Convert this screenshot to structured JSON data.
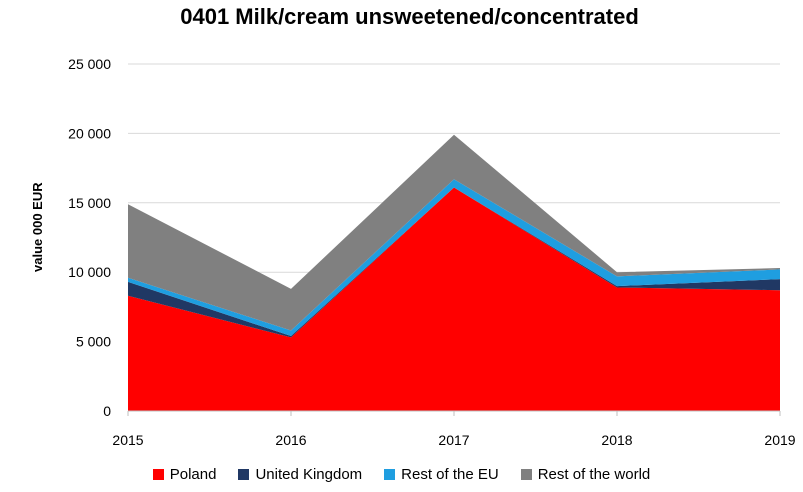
{
  "chart_data": {
    "type": "area",
    "stacked": true,
    "title": "0401 Milk/cream unsweetened/concentrated",
    "ylabel": "value 000 EUR",
    "xlabel": "",
    "x": [
      "2015",
      "2016",
      "2017",
      "2018",
      "2019"
    ],
    "ylim": [
      0,
      25000
    ],
    "yticks": [
      "0",
      "5 000",
      "10 000",
      "15 000",
      "20 000",
      "25 000"
    ],
    "ytick_values": [
      0,
      5000,
      10000,
      15000,
      20000,
      25000
    ],
    "grid": true,
    "legend_position": "bottom",
    "series": [
      {
        "name": "Poland",
        "color": "#ff0000",
        "values": [
          8300,
          5300,
          16100,
          8900,
          8700
        ]
      },
      {
        "name": "United Kingdom",
        "color": "#203864",
        "values": [
          1000,
          100,
          0,
          100,
          800
        ]
      },
      {
        "name": "Rest of the EU",
        "color": "#1f9ee0",
        "values": [
          300,
          400,
          600,
          700,
          700
        ]
      },
      {
        "name": "Rest of the world",
        "color": "#808080",
        "values": [
          5300,
          3000,
          3200,
          300,
          100
        ]
      }
    ]
  }
}
